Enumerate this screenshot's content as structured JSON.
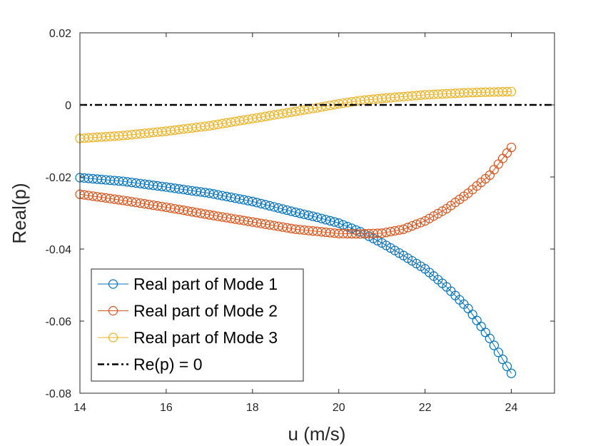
{
  "chart_data": {
    "type": "scatter",
    "xlabel": "u (m/s)",
    "ylabel": "Real(p)",
    "xlim": [
      14,
      25
    ],
    "ylim": [
      -0.08,
      0.02
    ],
    "xticks": [
      "14",
      "16",
      "18",
      "20",
      "22",
      "24"
    ],
    "yticks": [
      "0.02",
      "0",
      "-0.02",
      "-0.04",
      "-0.06",
      "-0.08"
    ],
    "legend_position": "bottom-left",
    "grid": false,
    "x_range": [
      14,
      24
    ],
    "n_points": 101,
    "series": [
      {
        "name": "Real part of Mode 1",
        "color": "#0072BD",
        "marker": "circle-line",
        "points": [
          [
            14.0,
            -0.0202
          ],
          [
            15.0,
            -0.0212
          ],
          [
            16.0,
            -0.0228
          ],
          [
            17.0,
            -0.0245
          ],
          [
            18.0,
            -0.0268
          ],
          [
            19.0,
            -0.0298
          ],
          [
            19.5,
            -0.0312
          ],
          [
            20.0,
            -0.0328
          ],
          [
            20.5,
            -0.0352
          ],
          [
            21.0,
            -0.0383
          ],
          [
            21.5,
            -0.0418
          ],
          [
            22.0,
            -0.0455
          ],
          [
            22.5,
            -0.0505
          ],
          [
            23.0,
            -0.0565
          ],
          [
            23.5,
            -0.0648
          ],
          [
            24.0,
            -0.0745
          ]
        ]
      },
      {
        "name": "Real part of Mode 2",
        "color": "#D95319",
        "marker": "circle-line",
        "points": [
          [
            14.0,
            -0.0248
          ],
          [
            15.0,
            -0.0265
          ],
          [
            16.0,
            -0.0284
          ],
          [
            17.0,
            -0.0305
          ],
          [
            18.0,
            -0.0325
          ],
          [
            19.0,
            -0.0345
          ],
          [
            20.0,
            -0.0357
          ],
          [
            20.5,
            -0.0358
          ],
          [
            21.0,
            -0.0356
          ],
          [
            21.5,
            -0.0345
          ],
          [
            22.0,
            -0.0322
          ],
          [
            22.5,
            -0.0288
          ],
          [
            23.0,
            -0.0245
          ],
          [
            23.5,
            -0.0195
          ],
          [
            24.0,
            -0.0118
          ]
        ]
      },
      {
        "name": "Real part of Mode 3",
        "color": "#EDB120",
        "marker": "circle-line",
        "points": [
          [
            14.0,
            -0.0093
          ],
          [
            15.0,
            -0.0085
          ],
          [
            16.0,
            -0.0073
          ],
          [
            17.0,
            -0.0058
          ],
          [
            18.0,
            -0.0038
          ],
          [
            19.0,
            -0.0018
          ],
          [
            19.5,
            -0.0008
          ],
          [
            20.0,
            0.0003
          ],
          [
            20.5,
            0.0012
          ],
          [
            21.0,
            0.0018
          ],
          [
            22.0,
            0.0028
          ],
          [
            23.0,
            0.0034
          ],
          [
            24.0,
            0.0037
          ]
        ]
      },
      {
        "name": "Re(p) = 0",
        "color": "#000000",
        "marker": "dash-dot-line",
        "points": [
          [
            14.0,
            0.0
          ],
          [
            25.0,
            0.0
          ]
        ]
      }
    ]
  }
}
